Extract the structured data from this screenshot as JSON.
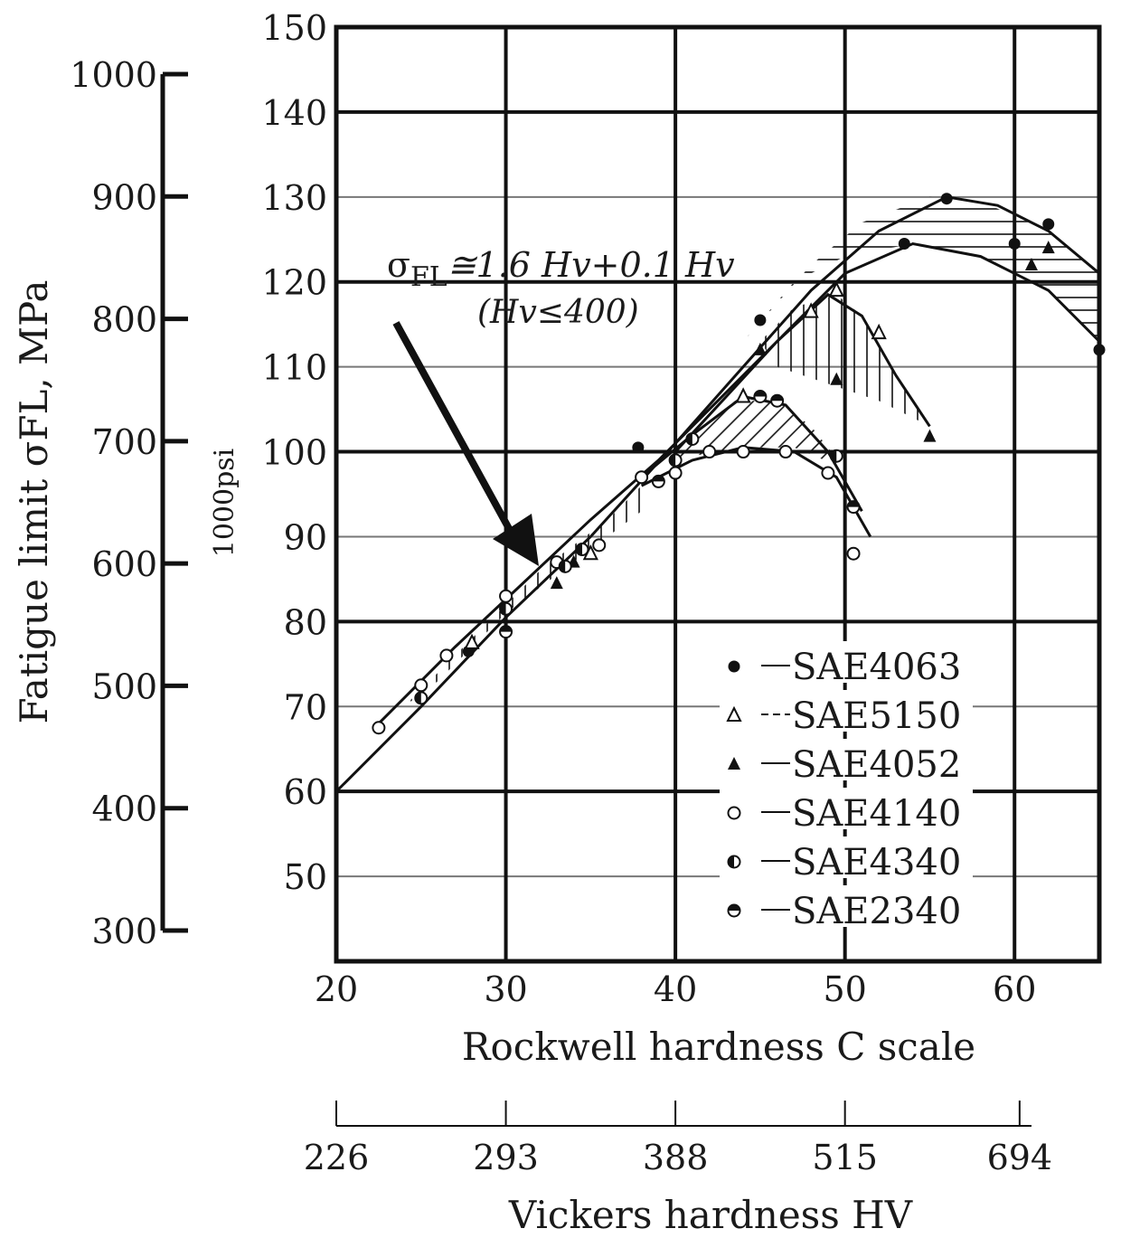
{
  "chart_data": {
    "type": "scatter",
    "xlabel": "Rockwell hardness C scale",
    "xlabel2": "Vickers hardness HV",
    "ylabel": "Fatigue limit σFL, MPa",
    "ylabel2": "1000psi",
    "xlim": [
      20,
      65
    ],
    "ylim": [
      40,
      150
    ],
    "x_ticks": [
      20,
      30,
      40,
      50,
      60
    ],
    "y_ticks": [
      50,
      60,
      70,
      80,
      90,
      100,
      110,
      120,
      130,
      140,
      150
    ],
    "mpa_ticks": [
      300,
      400,
      500,
      600,
      700,
      800,
      900,
      1000
    ],
    "hv_ticks": [
      {
        "hrc": 20,
        "label": "226"
      },
      {
        "hrc": 30,
        "label": "293"
      },
      {
        "hrc": 40,
        "label": "388"
      },
      {
        "hrc": 50,
        "label": "515"
      },
      {
        "hrc": 60,
        "label": "694"
      }
    ],
    "grid": true,
    "legend_position": "bottom-right",
    "annotation": {
      "formula_prefix": "σ",
      "formula_sub": "FL",
      "formula_rest": "≅1.6 Hv+0.1 Hv",
      "condition": "(Hv≤400)"
    },
    "series": [
      {
        "name": "SAE4063",
        "marker": "filled-circle",
        "x": [
          27.8,
          37.8,
          45.0,
          53.5,
          56.0,
          60.0,
          62.0,
          65.0
        ],
        "y": [
          76.5,
          100.5,
          115.5,
          124.5,
          129.8,
          124.5,
          126.8,
          112.0
        ]
      },
      {
        "name": "SAE5150",
        "marker": "open-triangle",
        "x": [
          28.0,
          35.0,
          44.0,
          48.0,
          49.5,
          52.0
        ],
        "y": [
          77.5,
          88.0,
          106.5,
          116.5,
          119.0,
          114.0
        ]
      },
      {
        "name": "SAE4052",
        "marker": "filled-triangle",
        "x": [
          33.0,
          34.0,
          45.0,
          49.5,
          55.0,
          61.0,
          62.0
        ],
        "y": [
          84.5,
          87.0,
          112.0,
          108.5,
          101.8,
          122.0,
          124.0
        ]
      },
      {
        "name": "SAE4140",
        "marker": "open-circle",
        "x": [
          22.5,
          25.0,
          26.5,
          30.0,
          33.0,
          35.5,
          38.0,
          40.0,
          42.0,
          44.0,
          46.5,
          49.0,
          50.5
        ],
        "y": [
          67.5,
          72.5,
          76.0,
          83.0,
          87.0,
          89.0,
          97.0,
          97.5,
          100.0,
          100.0,
          100.0,
          97.5,
          88.0
        ]
      },
      {
        "name": "SAE4340",
        "marker": "half-circle-left",
        "x": [
          25.0,
          30.0,
          33.5,
          34.5,
          40.0,
          41.0,
          49.5
        ],
        "y": [
          71.0,
          81.5,
          86.5,
          88.5,
          99.0,
          101.5,
          99.5
        ]
      },
      {
        "name": "SAE2340",
        "marker": "half-circle-top",
        "x": [
          30.0,
          39.0,
          45.0,
          46.0,
          50.5
        ],
        "y": [
          78.8,
          96.5,
          106.5,
          106.0,
          93.5
        ]
      }
    ]
  }
}
